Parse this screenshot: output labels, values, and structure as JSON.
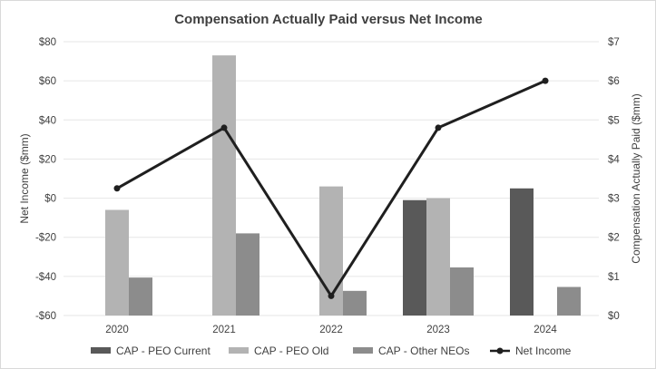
{
  "chart_data": {
    "type": "bar",
    "title": "Compensation Actually  Paid versus Net Income",
    "categories": [
      "2020",
      "2021",
      "2022",
      "2023",
      "2024"
    ],
    "left_axis": {
      "label": "Net Income  ($mm)",
      "ylim": [
        -60,
        80
      ],
      "ticks": [
        "$80",
        "$60",
        "$40",
        "$20",
        "$0",
        "-$20",
        "-$40",
        "-$60"
      ],
      "tick_values": [
        80,
        60,
        40,
        20,
        0,
        -20,
        -40,
        -60
      ]
    },
    "right_axis": {
      "label": "Compensation  Actually  Paid ($mm)",
      "ylim": [
        0,
        7
      ],
      "ticks": [
        "$7",
        "$6",
        "$5",
        "$4",
        "$3",
        "$2",
        "$1",
        "$0"
      ],
      "tick_values": [
        7,
        6,
        5,
        4,
        3,
        2,
        1,
        0
      ]
    },
    "bar_series": [
      {
        "name": "CAP - PEO Current",
        "color": "#595959",
        "axis": "right",
        "values": [
          null,
          null,
          null,
          2.95,
          3.25
        ]
      },
      {
        "name": "CAP - PEO Old",
        "color": "#b3b3b3",
        "axis": "right",
        "values": [
          2.7,
          6.65,
          3.3,
          3.0,
          null
        ]
      },
      {
        "name": "CAP - Other NEOs",
        "color": "#8c8c8c",
        "axis": "right",
        "values": [
          0.97,
          2.1,
          0.63,
          1.23,
          0.73
        ]
      }
    ],
    "line_series": [
      {
        "name": "Net Income",
        "color": "#1f1f1f",
        "axis": "left",
        "values": [
          5,
          36,
          -50,
          36,
          60
        ]
      }
    ],
    "grid": true,
    "legend_position": "bottom"
  }
}
